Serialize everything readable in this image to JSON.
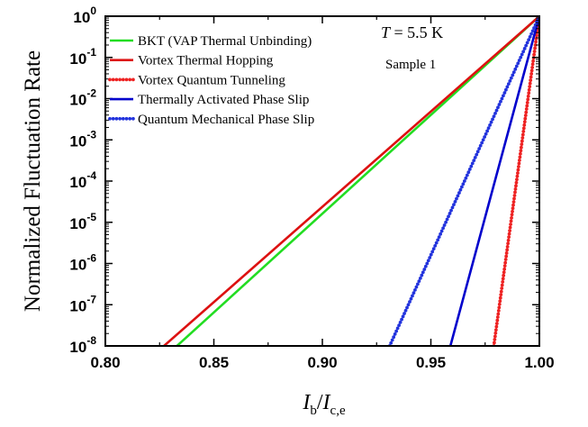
{
  "chart_data": {
    "type": "line",
    "title": "",
    "xlabel_main": "I",
    "xlabel_sub1": "b",
    "xlabel_sep": "/",
    "xlabel_main2": "I",
    "xlabel_sub2": "c,e",
    "ylabel": "Normalized Fluctuation Rate",
    "xlim": [
      0.8,
      1.0
    ],
    "ylim_log10": [
      -8,
      0
    ],
    "yscale": "log",
    "grid": false,
    "legend_placement": "top-left",
    "x_ticks": [
      "0.80",
      "0.85",
      "0.90",
      "0.95",
      "1.00"
    ],
    "y_tick_base": "10",
    "y_tick_exps": [
      "0",
      "-1",
      "-2",
      "-3",
      "-4",
      "-5",
      "-6",
      "-7",
      "-8"
    ],
    "annotation_T_symbol": "T",
    "annotation_T_value": " = 5.5 K",
    "annotation_sample": "Sample 1",
    "series": [
      {
        "name": "BKT (VAP Thermal Unbinding)",
        "color": "#22dd22",
        "style": "solid",
        "x_at_1e-8": 0.833
      },
      {
        "name": "Vortex Thermal Hopping",
        "color": "#dd1111",
        "style": "solid",
        "x_at_1e-8": 0.827
      },
      {
        "name": "Vortex Quantum Tunneling",
        "color": "#ee2222",
        "style": "dotted",
        "x_at_1e-8": 0.979
      },
      {
        "name": "Thermally Activated Phase Slip",
        "color": "#0000cc",
        "style": "solid",
        "x_at_1e-8": 0.959
      },
      {
        "name": "Quantum Mechanical Phase Slip",
        "color": "#2233dd",
        "style": "dotted",
        "x_at_1e-8": 0.931
      }
    ]
  }
}
